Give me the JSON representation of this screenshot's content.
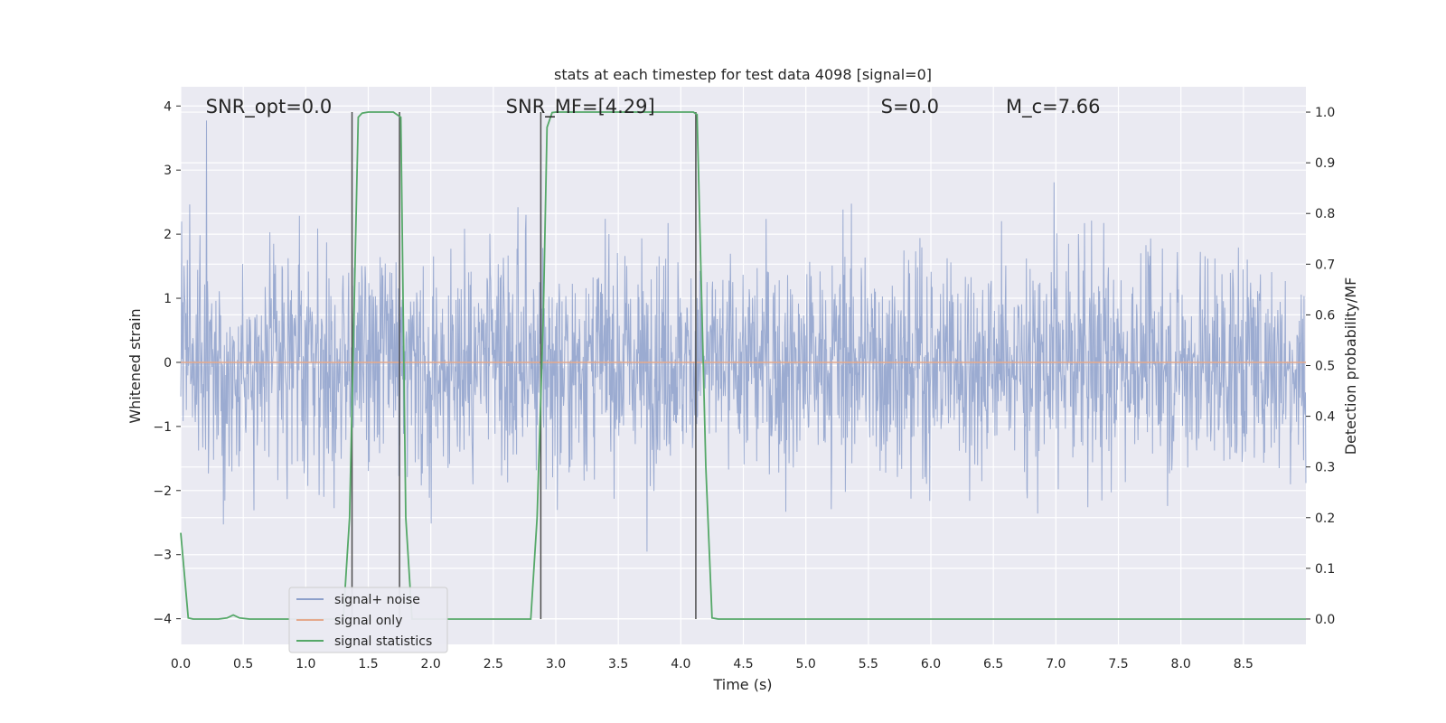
{
  "chart_data": {
    "type": "line",
    "title": "stats at each timestep for test data 4098 [signal=0]",
    "xlabel": "Time (s)",
    "ylabel_left": "Whitened strain",
    "ylabel_right": "Detection probability/MF",
    "xlim": [
      0.0,
      9.0
    ],
    "ylim_left": [
      -4.4,
      4.3
    ],
    "ylim_right": [
      -0.05,
      1.05
    ],
    "x_ticks": [
      0.0,
      0.5,
      1.0,
      1.5,
      2.0,
      2.5,
      3.0,
      3.5,
      4.0,
      4.5,
      5.0,
      5.5,
      6.0,
      6.5,
      7.0,
      7.5,
      8.0,
      8.5
    ],
    "x_tick_labels": [
      "0.0",
      "0.5",
      "1.0",
      "1.5",
      "2.0",
      "2.5",
      "3.0",
      "3.5",
      "4.0",
      "4.5",
      "5.0",
      "5.5",
      "6.0",
      "6.5",
      "7.0",
      "7.5",
      "8.0",
      "8.5"
    ],
    "y_ticks_left": [
      4,
      3,
      2,
      1,
      0,
      -1,
      -2,
      -3,
      -4
    ],
    "y_tick_labels_left": [
      "4",
      "3",
      "2",
      "1",
      "0",
      "−1",
      "−2",
      "−3",
      "−4"
    ],
    "y_ticks_right": [
      1.0,
      0.9,
      0.8,
      0.7,
      0.6,
      0.5,
      0.4,
      0.3,
      0.2,
      0.1,
      0.0
    ],
    "y_tick_labels_right": [
      "1.0",
      "0.9",
      "0.8",
      "0.7",
      "0.6",
      "0.5",
      "0.4",
      "0.3",
      "0.2",
      "0.1",
      "0.0"
    ],
    "annotations": [
      {
        "text": "SNR_opt=0.0",
        "x": 0.2
      },
      {
        "text": "SNR_MF=[4.29]",
        "x": 2.6
      },
      {
        "text": "S=0.0",
        "x": 5.6
      },
      {
        "text": "M_c=7.66",
        "x": 6.6
      }
    ],
    "series": [
      {
        "name": "signal+ noise",
        "axis": "left",
        "color": "#8da0cb",
        "description": "whitened noisy strain, roughly within ±3.5, peaks near ±4"
      },
      {
        "name": "signal only",
        "axis": "left",
        "color": "#e5a98c",
        "x": [
          0.0,
          9.0
        ],
        "y": [
          0.0,
          0.0
        ]
      },
      {
        "name": "signal statistics",
        "axis": "right",
        "color": "#55a868",
        "x": [
          0.0,
          0.06,
          0.1,
          0.2,
          0.3,
          0.37,
          0.42,
          0.47,
          0.55,
          1.0,
          1.3,
          1.35,
          1.42,
          1.45,
          1.5,
          1.55,
          1.6,
          1.65,
          1.7,
          1.73,
          1.76,
          1.8,
          1.85,
          1.9,
          2.0,
          2.5,
          2.8,
          2.85,
          2.9,
          2.93,
          2.97,
          3.0,
          3.5,
          4.0,
          4.1,
          4.13,
          4.2,
          4.25,
          4.3,
          5.0,
          6.0,
          7.0,
          8.0,
          9.0
        ],
        "y": [
          0.17,
          0.002,
          0.0,
          0.0,
          0.0,
          0.002,
          0.008,
          0.002,
          0.0,
          0.0,
          0.0,
          0.2,
          0.99,
          0.998,
          1.0,
          1.0,
          1.0,
          1.0,
          1.0,
          0.995,
          0.99,
          0.2,
          0.0,
          0.0,
          0.0,
          0.0,
          0.0,
          0.2,
          0.6,
          0.97,
          0.999,
          1.0,
          1.0,
          1.0,
          1.0,
          0.995,
          0.3,
          0.002,
          0.0,
          0.0,
          0.0,
          0.0,
          0.0,
          0.0
        ]
      }
    ],
    "vertical_lines": [
      1.37,
      1.75,
      2.88,
      4.12
    ],
    "legend": {
      "location": "lower-left",
      "entries": [
        {
          "label": "signal+ noise",
          "color": "#8da0cb"
        },
        {
          "label": "signal only",
          "color": "#e5a98c"
        },
        {
          "label": "signal statistics",
          "color": "#55a868"
        }
      ]
    },
    "style": {
      "background": "#eaeaf2",
      "grid": true,
      "grid_color": "#ffffff",
      "vline_color": "#4d4d4d"
    }
  }
}
